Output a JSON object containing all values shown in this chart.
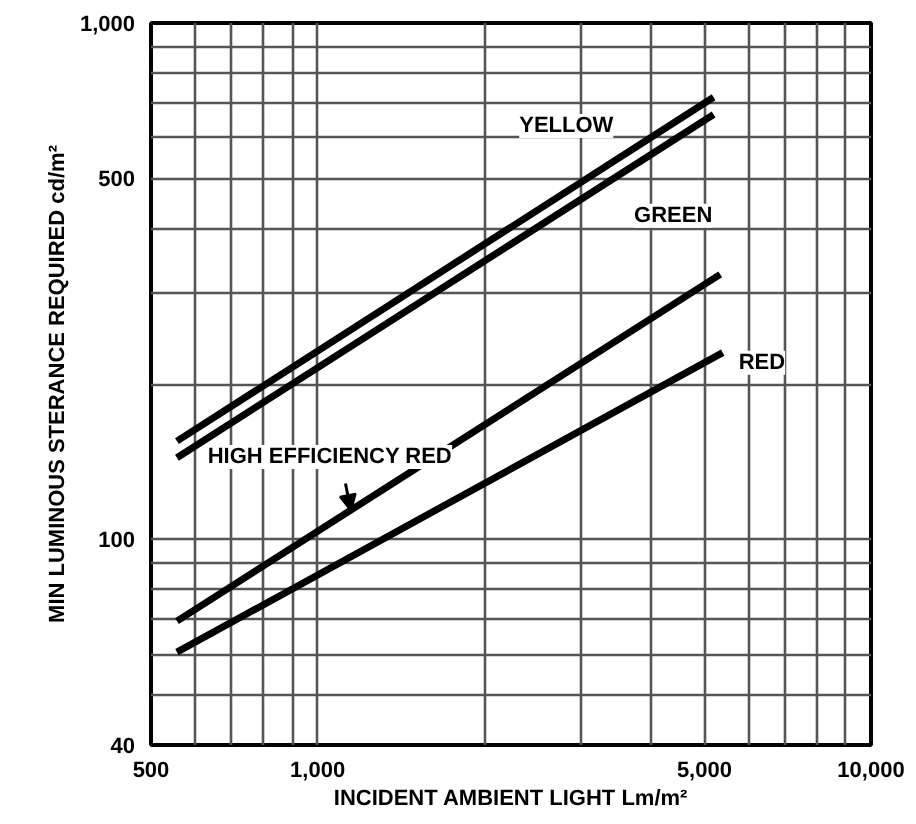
{
  "chart_data": {
    "type": "line",
    "xlabel": "INCIDENT AMBIENT LIGHT Lm/m²",
    "ylabel": "MIN LUMINOUS STERANCE REQUIRED cd/m²",
    "log": "xy",
    "grid": true,
    "marker": "none",
    "line_style": "solid",
    "xlim": [
      500,
      10000
    ],
    "xticks": [
      500,
      {
        "value": 1000,
        "label": "1,000"
      },
      {
        "value": 5000,
        "label": "5,000"
      },
      {
        "value": 10000,
        "label": "10,000"
      }
    ],
    "ylim": [
      40,
      1000
    ],
    "yticks": [
      40,
      100,
      500,
      {
        "value": 1000,
        "label": "1,000"
      }
    ],
    "series": [
      {
        "name": "YELLOW",
        "color": "#000000",
        "x": [
          557,
          5195
        ],
        "values": [
          155,
          718
        ]
      },
      {
        "name": "GREEN",
        "color": "#000000",
        "x": [
          557,
          5195
        ],
        "values": [
          144,
          665
        ]
      },
      {
        "name": "HIGH EFFICIENCY RED",
        "color": "#000000",
        "x": [
          557,
          5340
        ],
        "values": [
          69.5,
          326
        ]
      },
      {
        "name": "RED",
        "color": "#000000",
        "x": [
          557,
          5395
        ],
        "values": [
          60.5,
          230
        ]
      }
    ]
  }
}
